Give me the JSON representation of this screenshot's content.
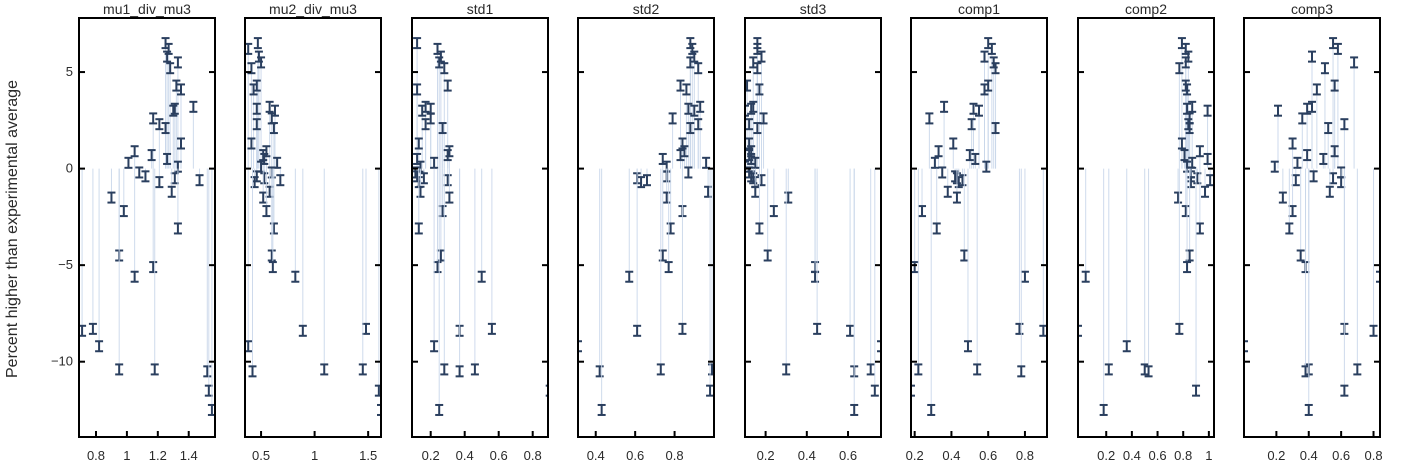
{
  "chart_data": {
    "type": "scatter",
    "ylabel": "Percent higher than experimental average",
    "ylim": [
      -13.9,
      7.8
    ],
    "yticks": [
      -10,
      -5,
      0,
      5
    ],
    "ytick_labels": [
      "−10",
      "−5",
      "0",
      "5"
    ],
    "grid": false,
    "legend": "none",
    "marker": "error-bar",
    "colors": {
      "marker": "#2a3f5f",
      "stem": "#c9d7ea",
      "axis": "#000000",
      "text": "#2a2a2a"
    },
    "y": [
      6.5,
      6.2,
      5.8,
      5.5,
      5.2,
      4.3,
      4.1,
      3.2,
      3.1,
      3.0,
      2.6,
      2.3,
      2.1,
      1.3,
      0.9,
      0.7,
      0.5,
      0.3,
      0.1,
      -0.2,
      -0.4,
      -0.5,
      -0.6,
      -0.7,
      -1.2,
      -1.5,
      -2.2,
      -3.1,
      -4.5,
      -5.1,
      -5.6,
      -8.3,
      -8.4,
      -9.2,
      -10.4,
      -10.4,
      -10.5,
      -11.5,
      -12.5
    ],
    "panels": [
      {
        "title": "mu1_div_mu3",
        "xlim": [
          0.69,
          1.57
        ],
        "xticks": [
          0.8,
          1.0,
          1.2,
          1.4
        ],
        "xtick_labels": [
          "0.8",
          "1",
          "1.2",
          "1.4"
        ],
        "x": [
          1.25,
          1.27,
          1.26,
          1.33,
          1.28,
          1.32,
          1.35,
          1.43,
          1.31,
          1.3,
          1.17,
          1.21,
          1.25,
          1.35,
          1.05,
          1.16,
          1.26,
          1.01,
          1.33,
          1.08,
          1.12,
          1.31,
          1.47,
          1.21,
          1.29,
          0.9,
          0.98,
          1.33,
          0.95,
          1.17,
          1.05,
          0.78,
          0.71,
          0.82,
          0.95,
          1.18,
          1.52,
          1.53,
          1.55
        ]
      },
      {
        "title": "mu2_div_mu3",
        "xlim": [
          0.35,
          1.62
        ],
        "xticks": [
          0.5,
          1.0,
          1.5
        ],
        "xtick_labels": [
          "0.5",
          "1",
          "1.5"
        ],
        "x": [
          0.47,
          0.38,
          0.48,
          0.5,
          0.41,
          0.46,
          0.43,
          0.58,
          0.46,
          0.63,
          0.6,
          0.46,
          0.62,
          0.41,
          0.55,
          0.52,
          0.53,
          0.65,
          0.5,
          0.6,
          0.46,
          0.53,
          0.68,
          0.44,
          0.58,
          0.52,
          0.55,
          0.62,
          0.6,
          0.61,
          0.82,
          1.48,
          0.89,
          0.38,
          1.09,
          1.45,
          0.42,
          1.6,
          1.62
        ]
      },
      {
        "title": "std1",
        "xlim": [
          0.09,
          0.89
        ],
        "xticks": [
          0.2,
          0.4,
          0.6,
          0.8
        ],
        "xtick_labels": [
          "0.2",
          "0.4",
          "0.6",
          "0.8"
        ],
        "x": [
          0.12,
          0.24,
          0.26,
          0.25,
          0.28,
          0.3,
          0.12,
          0.17,
          0.2,
          0.15,
          0.2,
          0.17,
          0.27,
          0.13,
          0.31,
          0.3,
          0.12,
          0.22,
          0.14,
          0.11,
          0.12,
          0.16,
          0.3,
          0.13,
          0.14,
          0.31,
          0.27,
          0.13,
          0.26,
          0.24,
          0.5,
          0.56,
          0.37,
          0.22,
          0.28,
          0.46,
          0.37,
          0.9,
          0.25
        ]
      },
      {
        "title": "std2",
        "xlim": [
          0.31,
          1.0
        ],
        "xticks": [
          0.4,
          0.6,
          0.8
        ],
        "xtick_labels": [
          "0.4",
          "0.6",
          "0.8"
        ],
        "x": [
          0.88,
          0.89,
          0.9,
          0.88,
          0.92,
          0.83,
          0.86,
          0.93,
          0.87,
          0.9,
          0.79,
          0.92,
          0.88,
          0.84,
          0.85,
          0.83,
          0.74,
          0.96,
          0.76,
          0.87,
          0.76,
          0.61,
          0.66,
          0.63,
          0.97,
          0.76,
          0.84,
          0.78,
          0.74,
          0.77,
          0.57,
          0.84,
          0.61,
          0.31,
          0.73,
          0.99,
          0.42,
          0.98,
          0.43
        ]
      },
      {
        "title": "std3",
        "xlim": [
          0.1,
          0.76
        ],
        "xticks": [
          0.2,
          0.4,
          0.6
        ],
        "xtick_labels": [
          "0.2",
          "0.4",
          "0.6"
        ],
        "x": [
          0.16,
          0.16,
          0.18,
          0.14,
          0.16,
          0.11,
          0.17,
          0.14,
          0.13,
          0.1,
          0.19,
          0.12,
          0.16,
          0.12,
          0.13,
          0.12,
          0.13,
          0.15,
          0.1,
          0.12,
          0.13,
          0.14,
          0.18,
          0.15,
          0.15,
          0.31,
          0.24,
          0.17,
          0.21,
          0.44,
          0.44,
          0.45,
          0.61,
          0.76,
          0.3,
          0.71,
          0.63,
          0.73,
          0.63
        ]
      },
      {
        "title": "comp1",
        "xlim": [
          0.18,
          0.92
        ],
        "xticks": [
          0.2,
          0.4,
          0.6,
          0.8
        ],
        "xtick_labels": [
          "0.2",
          "0.4",
          "0.6",
          "0.8"
        ],
        "x": [
          0.6,
          0.62,
          0.58,
          0.63,
          0.64,
          0.6,
          0.58,
          0.36,
          0.52,
          0.55,
          0.28,
          0.51,
          0.64,
          0.41,
          0.33,
          0.5,
          0.53,
          0.31,
          0.59,
          0.35,
          0.42,
          0.43,
          0.46,
          0.44,
          0.38,
          0.43,
          0.24,
          0.32,
          0.47,
          0.2,
          0.8,
          0.77,
          0.9,
          0.49,
          0.22,
          0.54,
          0.78,
          0.18,
          0.29
        ]
      },
      {
        "title": "comp2",
        "xlim": [
          -0.02,
          1.04
        ],
        "xticks": [
          0.2,
          0.4,
          0.6,
          0.8,
          1.0
        ],
        "xtick_labels": [
          "0.2",
          "0.4",
          "0.6",
          "0.8",
          "1"
        ],
        "x": [
          0.79,
          0.82,
          0.84,
          0.82,
          0.77,
          0.82,
          0.83,
          0.87,
          0.83,
          0.99,
          0.85,
          0.84,
          0.85,
          0.79,
          0.93,
          0.81,
          0.99,
          0.87,
          0.83,
          0.86,
          0.86,
          0.91,
          1.01,
          0.86,
          0.97,
          0.76,
          0.82,
          0.93,
          0.85,
          0.83,
          0.04,
          0.77,
          -0.02,
          0.36,
          0.22,
          0.5,
          0.53,
          0.9,
          0.18
        ]
      },
      {
        "title": "comp3",
        "xlim": [
          0.0,
          0.84
        ],
        "xticks": [
          0.2,
          0.4,
          0.6,
          0.8
        ],
        "xtick_labels": [
          "0.2",
          "0.4",
          "0.6",
          "0.8"
        ],
        "x": [
          0.55,
          0.58,
          0.42,
          0.68,
          0.5,
          0.56,
          0.45,
          0.42,
          0.39,
          0.21,
          0.36,
          0.62,
          0.52,
          0.3,
          0.56,
          0.39,
          0.49,
          0.33,
          0.19,
          0.6,
          0.43,
          0.55,
          0.32,
          0.6,
          0.53,
          0.24,
          0.3,
          0.28,
          0.35,
          0.38,
          0.84,
          0.62,
          0.8,
          0.0,
          0.4,
          0.7,
          0.38,
          0.62,
          0.4
        ]
      }
    ]
  }
}
